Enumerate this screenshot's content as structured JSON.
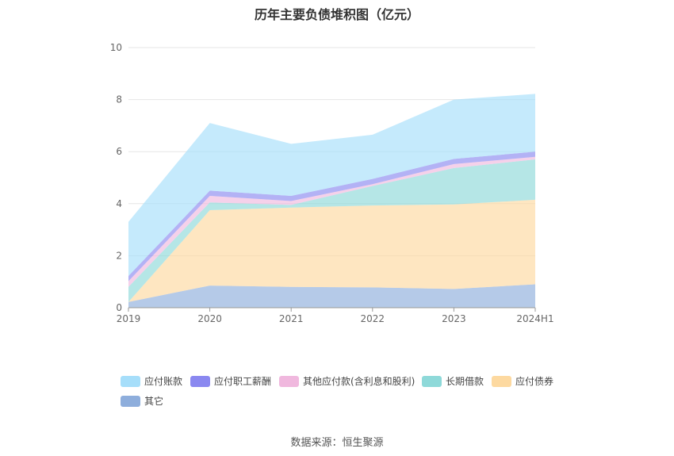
{
  "chart_data": {
    "type": "area",
    "title": "历年主要负债堆积图（亿元）",
    "stacked": true,
    "categories": [
      "2019",
      "2020",
      "2021",
      "2022",
      "2023",
      "2024H1"
    ],
    "y_ticks": [
      "0",
      "2",
      "4",
      "6",
      "8",
      "10"
    ],
    "ylim": [
      0,
      10
    ],
    "grid": true,
    "legend_position": "bottom",
    "series": [
      {
        "name": "其它",
        "color": "#8eaedc",
        "values": [
          0.22,
          0.85,
          0.8,
          0.78,
          0.72,
          0.9
        ]
      },
      {
        "name": "应付债券",
        "color": "#fdd9a0",
        "values": [
          0.0,
          2.9,
          3.05,
          3.15,
          3.25,
          3.25
        ]
      },
      {
        "name": "长期借款",
        "color": "#8ed9d9",
        "values": [
          0.58,
          0.3,
          0.1,
          0.75,
          1.4,
          1.55
        ]
      },
      {
        "name": "其他应付款(含利息和股利)",
        "color": "#f0b8de",
        "values": [
          0.22,
          0.25,
          0.15,
          0.07,
          0.15,
          0.1
        ]
      },
      {
        "name": "应付职工薪酬",
        "color": "#8a88f0",
        "values": [
          0.2,
          0.2,
          0.2,
          0.2,
          0.2,
          0.2
        ]
      },
      {
        "name": "应付账款",
        "color": "#a6defa",
        "values": [
          2.08,
          2.6,
          2.0,
          1.7,
          2.28,
          2.22
        ]
      }
    ]
  },
  "legend": [
    {
      "label": "应付账款",
      "color": "#a6defa"
    },
    {
      "label": "应付职工薪酬",
      "color": "#8a88f0"
    },
    {
      "label": "其他应付款(含利息和股利)",
      "color": "#f0b8de"
    },
    {
      "label": "长期借款",
      "color": "#8ed9d9"
    },
    {
      "label": "应付债券",
      "color": "#fdd9a0"
    },
    {
      "label": "其它",
      "color": "#8eaedc"
    }
  ],
  "source_text": "数据来源：恒生聚源"
}
